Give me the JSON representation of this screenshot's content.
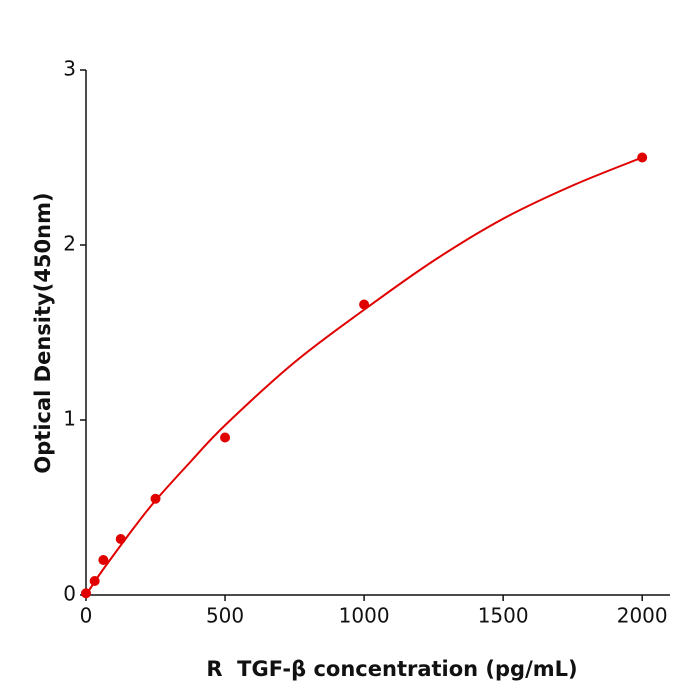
{
  "chart_data": {
    "type": "scatter",
    "x_label": "R  TGF-β concentration (pg/mL)",
    "y_label": "Optical Density(450nm)",
    "x": [
      0,
      31.25,
      62.5,
      125,
      250,
      500,
      1000,
      2000
    ],
    "y": [
      0.01,
      0.08,
      0.2,
      0.32,
      0.55,
      0.9,
      1.66,
      2.5
    ],
    "color": "#e00000",
    "fit": {
      "x": [
        0,
        50,
        100,
        175,
        250,
        375,
        500,
        750,
        1000,
        1250,
        1500,
        1750,
        2000
      ],
      "y": [
        0,
        0.12,
        0.23,
        0.39,
        0.54,
        0.76,
        0.97,
        1.33,
        1.63,
        1.91,
        2.15,
        2.34,
        2.5
      ]
    },
    "xlim": [
      0,
      2100
    ],
    "ylim": [
      0,
      3
    ],
    "xticks": [
      0,
      500,
      1000,
      1500,
      2000
    ],
    "yticks": [
      0,
      1,
      2,
      3
    ]
  }
}
